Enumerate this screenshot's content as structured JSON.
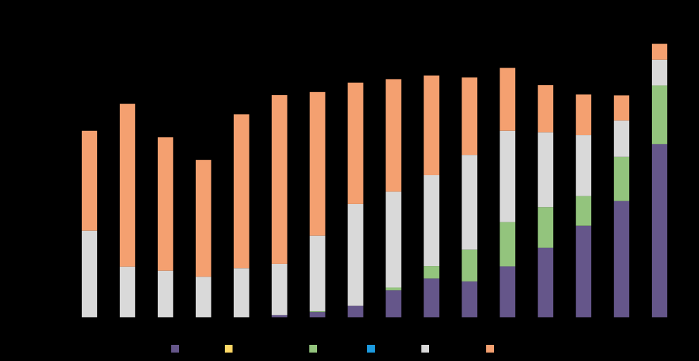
{
  "chart_data": {
    "type": "bar",
    "stacked": true,
    "title": "",
    "xlabel": "",
    "ylabel": "",
    "categories": [
      "",
      "",
      "",
      "",
      "",
      "",
      "",
      "",
      "",
      "",
      "",
      "",
      "",
      "",
      "",
      ""
    ],
    "ylim": [
      0,
      100
    ],
    "grid": false,
    "legend_position": "bottom",
    "series": [
      {
        "color": "#65568a",
        "values": [
          0,
          0,
          0,
          0,
          0,
          0.8,
          2,
          4.2,
          9.9,
          14.2,
          13.1,
          18.6,
          25.4,
          33.4,
          42.4,
          63.1
        ]
      },
      {
        "color": "#ffd966",
        "values": [
          0,
          0,
          0,
          0,
          0,
          0,
          0,
          0,
          0,
          0,
          0,
          0,
          0,
          0,
          0,
          0
        ]
      },
      {
        "color": "#93c47d",
        "values": [
          0,
          0,
          0,
          0,
          0,
          0,
          0.3,
          0,
          1,
          4.5,
          11.6,
          16.1,
          14.8,
          10.8,
          16.1,
          21.4
        ]
      },
      {
        "color": "#1c9be0",
        "values": [
          0,
          0,
          0,
          0,
          0,
          0,
          0,
          0,
          0,
          0,
          0,
          0,
          0,
          0,
          0,
          0
        ]
      },
      {
        "color": "#d9d9d9",
        "values": [
          31.6,
          18.5,
          17,
          14.8,
          17.9,
          18.7,
          27.5,
          37.1,
          34.9,
          33.1,
          34.5,
          33.3,
          27.2,
          22.2,
          13.2,
          9.4
        ]
      },
      {
        "color": "#f4a070",
        "values": [
          36.4,
          59.3,
          48.6,
          42.6,
          56.1,
          61.5,
          52.3,
          44.2,
          41,
          36.3,
          28.2,
          22.9,
          17.2,
          14.8,
          9.2,
          5.8
        ]
      }
    ]
  }
}
